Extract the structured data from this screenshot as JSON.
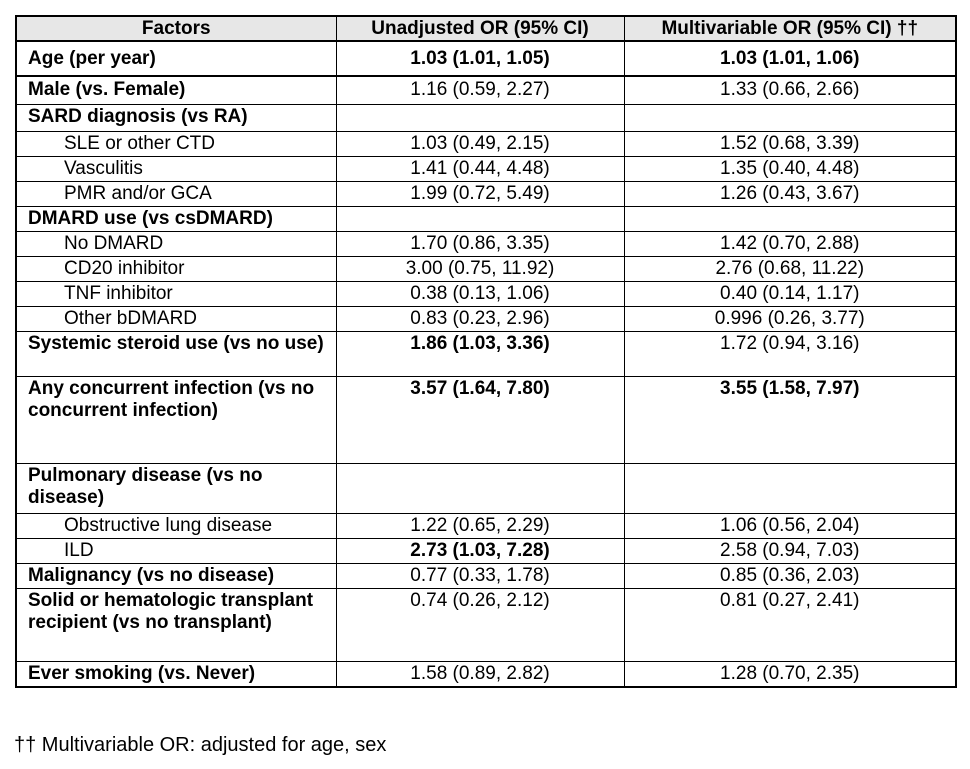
{
  "header": {
    "columns": [
      "Factors",
      "Unadjusted OR (95% CI)",
      "Multivariable OR (95% CI) ††"
    ]
  },
  "rows": [
    {
      "factor": "Age (per year)",
      "unadjusted": "1.03 (1.01, 1.05)",
      "multivariable": "1.03 (1.01, 1.06)",
      "factor_bold": true,
      "unadjusted_bold": true,
      "multivariable_bold": true,
      "indent": false
    },
    {
      "factor": "Male (vs. Female)",
      "unadjusted": "1.16 (0.59, 2.27)",
      "multivariable": "1.33 (0.66, 2.66)",
      "factor_bold": true,
      "unadjusted_bold": false,
      "multivariable_bold": false,
      "indent": false
    },
    {
      "factor": "SARD diagnosis (vs RA)",
      "unadjusted": "",
      "multivariable": "",
      "factor_bold": true,
      "unadjusted_bold": false,
      "multivariable_bold": false,
      "indent": false
    },
    {
      "factor": "SLE or other CTD",
      "unadjusted": "1.03 (0.49, 2.15)",
      "multivariable": "1.52 (0.68, 3.39)",
      "factor_bold": false,
      "unadjusted_bold": false,
      "multivariable_bold": false,
      "indent": true
    },
    {
      "factor": "Vasculitis",
      "unadjusted": "1.41 (0.44, 4.48)",
      "multivariable": "1.35 (0.40, 4.48)",
      "factor_bold": false,
      "unadjusted_bold": false,
      "multivariable_bold": false,
      "indent": true
    },
    {
      "factor": "PMR and/or GCA",
      "unadjusted": "1.99 (0.72, 5.49)",
      "multivariable": "1.26 (0.43, 3.67)",
      "factor_bold": false,
      "unadjusted_bold": false,
      "multivariable_bold": false,
      "indent": true
    },
    {
      "factor": "DMARD use (vs csDMARD)",
      "unadjusted": "",
      "multivariable": "",
      "factor_bold": true,
      "unadjusted_bold": false,
      "multivariable_bold": false,
      "indent": false
    },
    {
      "factor": "No DMARD",
      "unadjusted": "1.70 (0.86, 3.35)",
      "multivariable": "1.42 (0.70, 2.88)",
      "factor_bold": false,
      "unadjusted_bold": false,
      "multivariable_bold": false,
      "indent": true
    },
    {
      "factor": "CD20 inhibitor",
      "unadjusted": "3.00 (0.75, 11.92)",
      "multivariable": "2.76 (0.68, 11.22)",
      "factor_bold": false,
      "unadjusted_bold": false,
      "multivariable_bold": false,
      "indent": true
    },
    {
      "factor": "TNF inhibitor",
      "unadjusted": "0.38 (0.13, 1.06)",
      "multivariable": "0.40 (0.14, 1.17)",
      "factor_bold": false,
      "unadjusted_bold": false,
      "multivariable_bold": false,
      "indent": true
    },
    {
      "factor": "Other bDMARD",
      "unadjusted": "0.83 (0.23, 2.96)",
      "multivariable": "0.996 (0.26, 3.77)",
      "factor_bold": false,
      "unadjusted_bold": false,
      "multivariable_bold": false,
      "indent": true
    },
    {
      "factor": "Systemic steroid use (vs no use)",
      "unadjusted": "1.86 (1.03, 3.36)",
      "multivariable": "1.72 (0.94, 3.16)",
      "factor_bold": true,
      "unadjusted_bold": true,
      "multivariable_bold": false,
      "indent": false
    },
    {
      "factor": "Any concurrent infection (vs no concurrent infection)",
      "unadjusted": "3.57 (1.64, 7.80)",
      "multivariable": "3.55 (1.58, 7.97)",
      "factor_bold": true,
      "unadjusted_bold": true,
      "multivariable_bold": true,
      "indent": false
    },
    {
      "factor": "Pulmonary disease (vs no disease)",
      "unadjusted": "",
      "multivariable": "",
      "factor_bold": true,
      "unadjusted_bold": false,
      "multivariable_bold": false,
      "indent": false
    },
    {
      "factor": "Obstructive lung disease",
      "unadjusted": "1.22 (0.65, 2.29)",
      "multivariable": "1.06 (0.56, 2.04)",
      "factor_bold": false,
      "unadjusted_bold": false,
      "multivariable_bold": false,
      "indent": true
    },
    {
      "factor": "ILD",
      "unadjusted": "2.73 (1.03, 7.28)",
      "multivariable": "2.58 (0.94, 7.03)",
      "factor_bold": false,
      "unadjusted_bold": true,
      "multivariable_bold": false,
      "indent": true
    },
    {
      "factor": "Malignancy (vs no disease)",
      "unadjusted": "0.77 (0.33, 1.78)",
      "multivariable": "0.85 (0.36, 2.03)",
      "factor_bold": true,
      "unadjusted_bold": false,
      "multivariable_bold": false,
      "indent": false
    },
    {
      "factor": "Solid or hematologic transplant recipient (vs no transplant)",
      "unadjusted": "0.74 (0.26, 2.12)",
      "multivariable": "0.81 (0.27, 2.41)",
      "factor_bold": true,
      "unadjusted_bold": false,
      "multivariable_bold": false,
      "indent": false
    },
    {
      "factor": "Ever smoking (vs. Never)",
      "unadjusted": "1.58 (0.89, 2.82)",
      "multivariable": "1.28 (0.70, 2.35)",
      "factor_bold": true,
      "unadjusted_bold": false,
      "multivariable_bold": false,
      "indent": false
    }
  ],
  "footnote": "†† Multivariable OR: adjusted for age, sex",
  "colors": {
    "header_bg": "#E7E7E7",
    "border": "#000000",
    "text": "#000000"
  }
}
